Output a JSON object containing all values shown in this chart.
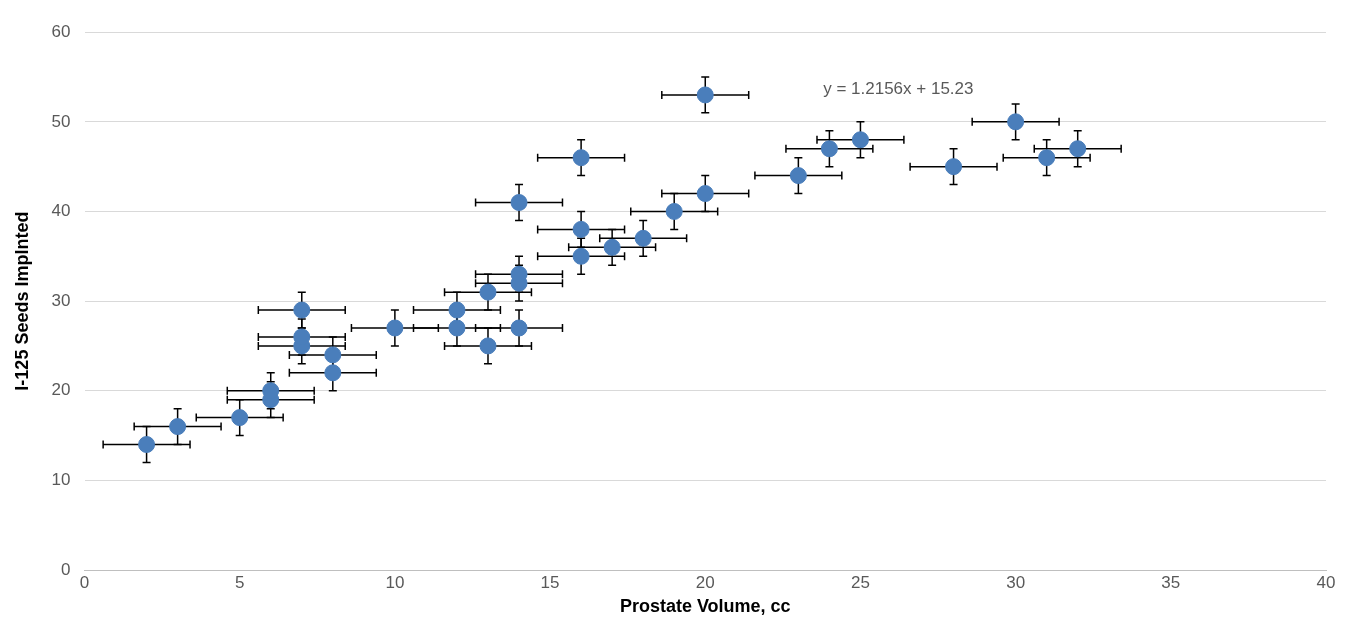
{
  "chart_data": {
    "type": "scatter",
    "xlabel": "Prostate Volume, cc",
    "ylabel": "I-125 Seeds Implnted",
    "x": [
      2,
      3,
      5,
      6,
      6,
      7,
      7,
      7,
      8,
      8,
      10,
      12,
      12,
      13,
      13,
      14,
      14,
      14,
      14,
      16,
      16,
      16,
      17,
      18,
      19,
      20,
      20,
      23,
      24,
      25,
      28,
      30,
      31,
      32
    ],
    "values": [
      14,
      16,
      17,
      19,
      20,
      25,
      26,
      29,
      24,
      22,
      27,
      27,
      29,
      25,
      31,
      27,
      32,
      33,
      41,
      35,
      38,
      46,
      36,
      37,
      40,
      42,
      53,
      44,
      47,
      48,
      45,
      50,
      46,
      47
    ],
    "errors": [
      2,
      2,
      2,
      2,
      2,
      2,
      2,
      2,
      2,
      2,
      2,
      2,
      2,
      2,
      2,
      2,
      2,
      2,
      2,
      2,
      2,
      2,
      2,
      2,
      2,
      2,
      2,
      2,
      2,
      2,
      2,
      2,
      2,
      2
    ],
    "xerrors": [
      1.4,
      1.4,
      1.4,
      1.4,
      1.4,
      1.4,
      1.4,
      1.4,
      1.4,
      1.4,
      1.4,
      1.4,
      1.4,
      1.4,
      1.4,
      1.4,
      1.4,
      1.4,
      1.4,
      1.4,
      1.4,
      1.4,
      1.4,
      1.4,
      1.4,
      1.4,
      1.4,
      1.4,
      1.4,
      1.4,
      1.4,
      1.4,
      1.4,
      1.4
    ],
    "color": "#4a7ebb",
    "marker": "circle",
    "xlim": [
      0,
      40
    ],
    "xticks": [
      0,
      5,
      10,
      15,
      20,
      25,
      30,
      35,
      40
    ],
    "ylim": [
      0,
      60
    ],
    "yticks": [
      0,
      10,
      20,
      30,
      40,
      50,
      60
    ],
    "grid": "y",
    "legend": false,
    "annotations": [
      "y = 1.2156x + 15.23"
    ]
  }
}
